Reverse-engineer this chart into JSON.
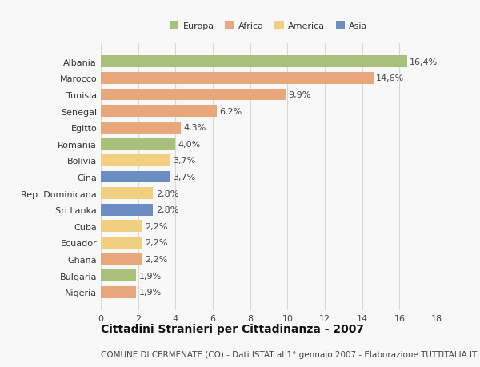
{
  "categories": [
    "Albania",
    "Marocco",
    "Tunisia",
    "Senegal",
    "Egitto",
    "Romania",
    "Bolivia",
    "Cina",
    "Rep. Dominicana",
    "Sri Lanka",
    "Cuba",
    "Ecuador",
    "Ghana",
    "Bulgaria",
    "Nigeria"
  ],
  "values": [
    16.4,
    14.6,
    9.9,
    6.2,
    4.3,
    4.0,
    3.7,
    3.7,
    2.8,
    2.8,
    2.2,
    2.2,
    2.2,
    1.9,
    1.9
  ],
  "labels": [
    "16,4%",
    "14,6%",
    "9,9%",
    "6,2%",
    "4,3%",
    "4,0%",
    "3,7%",
    "3,7%",
    "2,8%",
    "2,8%",
    "2,2%",
    "2,2%",
    "2,2%",
    "1,9%",
    "1,9%"
  ],
  "colors": [
    "#a8c07a",
    "#e8a87c",
    "#e8a87c",
    "#e8a87c",
    "#e8a87c",
    "#a8c07a",
    "#f0d080",
    "#6b8dc4",
    "#f0d080",
    "#6b8dc4",
    "#f0d080",
    "#f0d080",
    "#e8a87c",
    "#a8c07a",
    "#e8a87c"
  ],
  "legend_labels": [
    "Europa",
    "Africa",
    "America",
    "Asia"
  ],
  "legend_colors": [
    "#a8c07a",
    "#e8a87c",
    "#f0d080",
    "#6b8dc4"
  ],
  "title": "Cittadini Stranieri per Cittadinanza - 2007",
  "subtitle": "COMUNE DI CERMENATE (CO) - Dati ISTAT al 1° gennaio 2007 - Elaborazione TUTTITALIA.IT",
  "xlim": [
    0,
    18
  ],
  "xticks": [
    0,
    2,
    4,
    6,
    8,
    10,
    12,
    14,
    16,
    18
  ],
  "background_color": "#f8f8f8",
  "grid_color": "#d8d8d8",
  "bar_height": 0.72,
  "label_fontsize": 8,
  "tick_fontsize": 8,
  "ytick_fontsize": 8,
  "title_fontsize": 10,
  "subtitle_fontsize": 7.5
}
